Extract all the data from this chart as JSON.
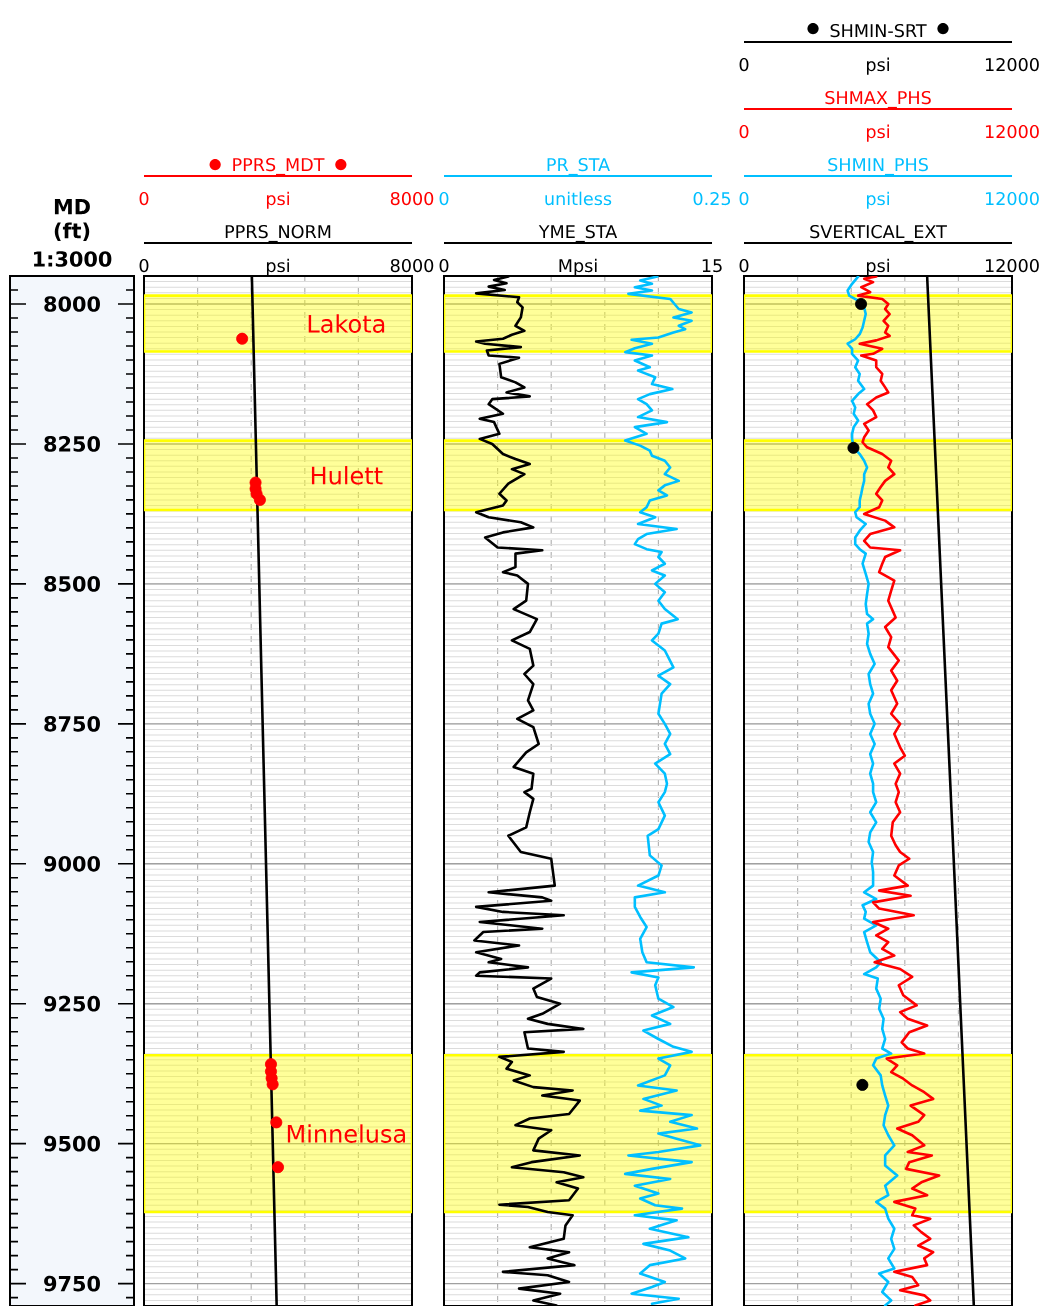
{
  "chart_data": [
    {
      "type": "line",
      "ylabel": "MD (ft)",
      "annotations": [
        "1:3000"
      ],
      "xlabel": "psi",
      "xlim": [
        0,
        8000
      ],
      "xticks": [
        0,
        {
          "value": 1600,
          "label": null
        },
        {
          "value": 3200,
          "label": null
        },
        {
          "value": 4800,
          "label": null
        },
        {
          "value": 6400,
          "label": null
        },
        8000
      ],
      "x2label": "psi",
      "x2lim": [
        0,
        8000
      ],
      "x2ticks": [
        0,
        8000
      ],
      "ylim": [
        9790,
        7950
      ],
      "yticks": [
        {
          "value": 7975,
          "label": null
        },
        8000,
        {
          "value": 8025,
          "label": null
        },
        {
          "value": 8050,
          "label": null
        },
        {
          "value": 8075,
          "label": null
        },
        {
          "value": 8100,
          "label": null
        },
        {
          "value": 8125,
          "label": null
        },
        {
          "value": 8150,
          "label": null
        },
        {
          "value": 8175,
          "label": null
        },
        {
          "value": 8200,
          "label": null
        },
        {
          "value": 8225,
          "label": null
        },
        8250,
        {
          "value": 8275,
          "label": null
        },
        {
          "value": 8300,
          "label": null
        },
        {
          "value": 8325,
          "label": null
        },
        {
          "value": 8350,
          "label": null
        },
        {
          "value": 8375,
          "label": null
        },
        {
          "value": 8400,
          "label": null
        },
        {
          "value": 8425,
          "label": null
        },
        {
          "value": 8450,
          "label": null
        },
        {
          "value": 8475,
          "label": null
        },
        8500,
        {
          "value": 8525,
          "label": null
        },
        {
          "value": 8550,
          "label": null
        },
        {
          "value": 8575,
          "label": null
        },
        {
          "value": 8600,
          "label": null
        },
        {
          "value": 8625,
          "label": null
        },
        {
          "value": 8650,
          "label": null
        },
        {
          "value": 8675,
          "label": null
        },
        {
          "value": 8700,
          "label": null
        },
        {
          "value": 8725,
          "label": null
        },
        8750,
        {
          "value": 8775,
          "label": null
        },
        {
          "value": 8800,
          "label": null
        },
        {
          "value": 8825,
          "label": null
        },
        {
          "value": 8850,
          "label": null
        },
        {
          "value": 8875,
          "label": null
        },
        {
          "value": 8900,
          "label": null
        },
        {
          "value": 8925,
          "label": null
        },
        {
          "value": 8950,
          "label": null
        },
        {
          "value": 8975,
          "label": null
        },
        9000,
        {
          "value": 9025,
          "label": null
        },
        {
          "value": 9050,
          "label": null
        },
        {
          "value": 9075,
          "label": null
        },
        {
          "value": 9100,
          "label": null
        },
        {
          "value": 9125,
          "label": null
        },
        {
          "value": 9150,
          "label": null
        },
        {
          "value": 9175,
          "label": null
        },
        {
          "value": 9200,
          "label": null
        },
        {
          "value": 9225,
          "label": null
        },
        9250,
        {
          "value": 9275,
          "label": null
        },
        {
          "value": 9300,
          "label": null
        },
        {
          "value": 9325,
          "label": null
        },
        {
          "value": 9350,
          "label": null
        },
        {
          "value": 9375,
          "label": null
        },
        {
          "value": 9400,
          "label": null
        },
        {
          "value": 9425,
          "label": null
        },
        {
          "value": 9450,
          "label": null
        },
        {
          "value": 9475,
          "label": null
        },
        9500,
        {
          "value": 9525,
          "label": null
        },
        {
          "value": 9550,
          "label": null
        },
        {
          "value": 9575,
          "label": null
        },
        {
          "value": 9600,
          "label": null
        },
        {
          "value": 9625,
          "label": null
        },
        {
          "value": 9650,
          "label": null
        },
        {
          "value": 9675,
          "label": null
        },
        {
          "value": 9700,
          "label": null
        },
        {
          "value": 9725,
          "label": null
        },
        9750,
        {
          "value": 9775,
          "label": null
        }
      ],
      "grid": true,
      "legend": "top",
      "bands": [
        {
          "axis": "y",
          "from": 7985,
          "to": 8085,
          "label": "Lakota",
          "color": "#ffff00"
        },
        {
          "axis": "y",
          "from": 8244,
          "to": 8368,
          "label": "Hulett",
          "color": "#ffff00"
        },
        {
          "axis": "y",
          "from": 9342,
          "to": 9622,
          "label": "Minnelusa",
          "color": "#ffff00"
        }
      ],
      "series": [
        {
          "name": "PPRS_NORM",
          "color": "#000000",
          "x": [
            3220,
            3960
          ],
          "values": [
            7951,
            9789
          ]
        },
        {
          "name": "PPRS_MDT",
          "type": "scatter",
          "marker": "circle",
          "axis": "x2",
          "color": "#ff0000",
          "x": [
            2930,
            3330,
            3330,
            3360,
            3460,
            3790,
            3790,
            3810,
            3840,
            3950,
            4000
          ],
          "values": [
            8062,
            8319,
            8330,
            8339,
            8350,
            9358,
            9371,
            9383,
            9394,
            9462,
            9542
          ]
        }
      ]
    },
    {
      "type": "line",
      "tick_labels": "x",
      "xlabel": "Mpsi",
      "xlim": [
        0,
        15
      ],
      "xticks": [
        0,
        {
          "value": 3,
          "label": null
        },
        {
          "value": 6,
          "label": null
        },
        {
          "value": 9,
          "label": null
        },
        {
          "value": 12,
          "label": null
        },
        15
      ],
      "x2label": "unitless",
      "x2lim": [
        0,
        0.25
      ],
      "x2ticks": [
        0,
        0.25
      ],
      "ylim": [
        9790,
        7950
      ],
      "yticks": [
        8000,
        8250,
        8500,
        8750,
        9000,
        9250,
        9500,
        9750
      ],
      "grid": true,
      "legend": "top",
      "bands": [
        {
          "axis": "y",
          "from": 7985,
          "to": 8085,
          "color": "#ffff00"
        },
        {
          "axis": "y",
          "from": 8244,
          "to": 8368,
          "color": "#ffff00"
        },
        {
          "axis": "y",
          "from": 9342,
          "to": 9622,
          "color": "#ffff00"
        }
      ],
      "series": [
        {
          "name": "YME_STA",
          "color": "#000000",
          "x": [
            3.6,
            2.8,
            3.5,
            2.5,
            3.4,
            1.8,
            4.2,
            4.1,
            4.4,
            4.3,
            4.0,
            4.5,
            3.8,
            3.3,
            1.8,
            2.3,
            4.3,
            2.4,
            2.5,
            4.2,
            3.1,
            3.2,
            4.0,
            4.5,
            3.5,
            4.8,
            2.7,
            2.5,
            3.3,
            2.0,
            2.8,
            3.1,
            2.0,
            2.7,
            3.3,
            4.0,
            4.8,
            3.8,
            4.5,
            3.6,
            3.1,
            3.5,
            3.3,
            1.8,
            2.5,
            4.3,
            5.0,
            3.3,
            2.3,
            3.0,
            5.5,
            4.0,
            4.0,
            3.3,
            4.1,
            4.7,
            4.6,
            3.9,
            5.2,
            4.8,
            3.8,
            4.8,
            5.0,
            4.5,
            5.0,
            4.7,
            5.0,
            4.1,
            5.0,
            5.3,
            4.6,
            3.9,
            5.0,
            4.9,
            4.5,
            5.0,
            4.8,
            4.6,
            3.6,
            4.3,
            6.0,
            6.2,
            2.5,
            5.5,
            6.0,
            1.8,
            3.3,
            6.7,
            2.0,
            5.5,
            2.2,
            1.7,
            4.2,
            1.8,
            3.2,
            2.5,
            4.7,
            2.0,
            1.8,
            6.0,
            5.0,
            5.2,
            6.5,
            5.5,
            4.7,
            5.8,
            7.8,
            4.5,
            4.7,
            6.7,
            3.1,
            3.8,
            3.5,
            4.8,
            3.9,
            5.0,
            7.2,
            5.5,
            7.6,
            7.0,
            4.8,
            4.0,
            6.0,
            5.3,
            5.0,
            7.6,
            4.9,
            3.8,
            6.7,
            7.8,
            6.3,
            7.5,
            7.0,
            3.1,
            4.7,
            5.8,
            7.2,
            6.8,
            6.7,
            4.8,
            7.0,
            5.8,
            7.3,
            3.3,
            5.8,
            7.0,
            4.2,
            6.5,
            5.0,
            6.3
          ],
          "values": [
            7951,
            7957,
            7963,
            7969,
            7975,
            7981,
            7988,
            7997,
            8006,
            8024,
            8039,
            8048,
            8055,
            8062,
            8067,
            8071,
            8077,
            8083,
            8092,
            8096,
            8107,
            8131,
            8140,
            8149,
            8158,
            8165,
            8170,
            8179,
            8196,
            8205,
            8211,
            8232,
            8241,
            8250,
            8268,
            8277,
            8286,
            8295,
            8304,
            8321,
            8339,
            8351,
            8360,
            8372,
            8381,
            8390,
            8399,
            8408,
            8417,
            8435,
            8440,
            8446,
            8470,
            8479,
            8485,
            8500,
            8530,
            8545,
            8563,
            8586,
            8601,
            8616,
            8646,
            8661,
            8679,
            8708,
            8726,
            8741,
            8756,
            8786,
            8801,
            8827,
            8839,
            8866,
            8872,
            8884,
            8908,
            8935,
            8950,
            8979,
            8991,
            9039,
            9051,
            9060,
            9066,
            9077,
            9086,
            9092,
            9104,
            9116,
            9122,
            9137,
            9146,
            9158,
            9170,
            9176,
            9185,
            9194,
            9200,
            9205,
            9223,
            9238,
            9250,
            9268,
            9277,
            9286,
            9295,
            9301,
            9330,
            9336,
            9345,
            9354,
            9366,
            9378,
            9387,
            9399,
            9405,
            9414,
            9423,
            9447,
            9455,
            9467,
            9476,
            9491,
            9512,
            9521,
            9533,
            9542,
            9551,
            9560,
            9569,
            9580,
            9601,
            9609,
            9613,
            9622,
            9628,
            9646,
            9670,
            9685,
            9694,
            9705,
            9717,
            9729,
            9735,
            9747,
            9759,
            9768,
            9780,
            9789
          ]
        },
        {
          "name": "PR_STA",
          "axis": "x2",
          "color": "#00bfff",
          "x": [
            0.199,
            0.183,
            0.194,
            0.178,
            0.194,
            0.172,
            0.211,
            0.215,
            0.219,
            0.231,
            0.214,
            0.231,
            0.219,
            0.225,
            0.214,
            0.2,
            0.175,
            0.194,
            0.178,
            0.169,
            0.194,
            0.178,
            0.192,
            0.181,
            0.197,
            0.194,
            0.213,
            0.192,
            0.181,
            0.189,
            0.194,
            0.181,
            0.208,
            0.178,
            0.189,
            0.169,
            0.183,
            0.192,
            0.194,
            0.206,
            0.211,
            0.206,
            0.219,
            0.206,
            0.2,
            0.208,
            0.192,
            0.189,
            0.183,
            0.197,
            0.181,
            0.217,
            0.189,
            0.181,
            0.178,
            0.189,
            0.203,
            0.2,
            0.206,
            0.194,
            0.206,
            0.197,
            0.206,
            0.2,
            0.206,
            0.218,
            0.203,
            0.2,
            0.194,
            0.206,
            0.214,
            0.2,
            0.211,
            0.203,
            0.2,
            0.206,
            0.211,
            0.206,
            0.211,
            0.197,
            0.206,
            0.208,
            0.206,
            0.2,
            0.206,
            0.2,
            0.19,
            0.192,
            0.203,
            0.2,
            0.181,
            0.206,
            0.178,
            0.178,
            0.183,
            0.189,
            0.183,
            0.185,
            0.189,
            0.233,
            0.175,
            0.2,
            0.197,
            0.2,
            0.214,
            0.194,
            0.211,
            0.186,
            0.2,
            0.214,
            0.231,
            0.2,
            0.211,
            0.206,
            0.181,
            0.217,
            0.186,
            0.203,
            0.183,
            0.231,
            0.211,
            0.236,
            0.2,
            0.217,
            0.239,
            0.2,
            0.172,
            0.231,
            0.194,
            0.169,
            0.211,
            0.178,
            0.2,
            0.183,
            0.197,
            0.222,
            0.178,
            0.217,
            0.192,
            0.228,
            0.186,
            0.211,
            0.225,
            0.192,
            0.183,
            0.206,
            0.194,
            0.175,
            0.219,
            0.194
          ],
          "values": [
            7951,
            7958,
            7964,
            7970,
            7976,
            7982,
            7991,
            8000,
            8009,
            8015,
            8024,
            8030,
            8039,
            8045,
            8051,
            8060,
            8064,
            8071,
            8079,
            8086,
            8092,
            8101,
            8113,
            8119,
            8131,
            8143,
            8152,
            8161,
            8170,
            8179,
            8190,
            8202,
            8211,
            8220,
            8232,
            8244,
            8253,
            8262,
            8271,
            8280,
            8292,
            8304,
            8316,
            8324,
            8333,
            8342,
            8351,
            8363,
            8372,
            8381,
            8393,
            8402,
            8411,
            8420,
            8429,
            8438,
            8443,
            8452,
            8464,
            8476,
            8485,
            8500,
            8515,
            8530,
            8545,
            8563,
            8571,
            8589,
            8601,
            8619,
            8649,
            8664,
            8679,
            8696,
            8732,
            8750,
            8768,
            8786,
            8804,
            8821,
            8839,
            8857,
            8872,
            8890,
            8914,
            8938,
            8950,
            8985,
            9003,
            9021,
            9039,
            9051,
            9060,
            9077,
            9095,
            9113,
            9134,
            9158,
            9176,
            9185,
            9194,
            9203,
            9217,
            9241,
            9256,
            9271,
            9286,
            9298,
            9313,
            9327,
            9336,
            9348,
            9360,
            9378,
            9396,
            9405,
            9420,
            9432,
            9441,
            9449,
            9461,
            9473,
            9482,
            9491,
            9503,
            9515,
            9521,
            9533,
            9545,
            9554,
            9563,
            9575,
            9589,
            9598,
            9610,
            9616,
            9628,
            9637,
            9652,
            9667,
            9679,
            9691,
            9705,
            9717,
            9732,
            9747,
            9756,
            9768,
            9777,
            9786
          ]
        }
      ]
    },
    {
      "type": "line",
      "tick_labels": "x",
      "xlabel": "psi",
      "xlim": [
        0,
        12000
      ],
      "xticks": [
        0,
        {
          "value": 2400,
          "label": null
        },
        {
          "value": 4800,
          "label": null
        },
        {
          "value": 7200,
          "label": null
        },
        {
          "value": 9600,
          "label": null
        },
        12000
      ],
      "x2label": "psi",
      "x2lim": [
        0,
        12000
      ],
      "x2ticks": [
        0,
        12000
      ],
      "annotations": [
        "0",
        "psi",
        "12000",
        "0",
        "psi",
        "12000"
      ],
      "ylim": [
        9790,
        7950
      ],
      "yticks": [
        8000,
        8250,
        8500,
        8750,
        9000,
        9250,
        9500,
        9750
      ],
      "grid": true,
      "legend": "top",
      "bands": [
        {
          "axis": "y",
          "from": 7985,
          "to": 8085,
          "color": "#ffff00"
        },
        {
          "axis": "y",
          "from": 8244,
          "to": 8368,
          "color": "#ffff00"
        },
        {
          "axis": "y",
          "from": 9342,
          "to": 9622,
          "color": "#ffff00"
        }
      ],
      "series": [
        {
          "name": "SVERTICAL_EXT",
          "color": "#000000",
          "x": [
            8200,
            9250,
            10290
          ],
          "values": [
            7951,
            8869,
            9789
          ]
        },
        {
          "name": "SHMIN_PHS",
          "axis": "x2",
          "color": "#00bfff",
          "x": [
            5110,
            4840,
            4640,
            4710,
            5110,
            5380,
            5450,
            5380,
            5310,
            5180,
            4980,
            4640,
            4840,
            4840,
            5110,
            4980,
            5180,
            5110,
            5380,
            5110,
            4840,
            4980,
            4910,
            5110,
            4910,
            4840,
            4840,
            4910,
            5180,
            5380,
            5510,
            5380,
            5380,
            5310,
            5250,
            5180,
            5180,
            4980,
            5040,
            5450,
            5180,
            4980,
            4980,
            5180,
            5450,
            5310,
            5450,
            5580,
            5510,
            5450,
            5510,
            5780,
            5510,
            5580,
            5510,
            5650,
            5850,
            5580,
            5650,
            5780,
            5580,
            5650,
            5850,
            5650,
            5850,
            5650,
            5780,
            5650,
            5780,
            5780,
            5920,
            5650,
            5920,
            5650,
            5580,
            5780,
            5720,
            5780,
            5780,
            5380,
            5920,
            5310,
            5450,
            5380,
            5920,
            5380,
            5510,
            5650,
            6120,
            5920,
            5380,
            5990,
            5920,
            6120,
            6050,
            6250,
            6190,
            6320,
            6190,
            6590,
            5920,
            5780,
            6120,
            6190,
            6320,
            6460,
            6320,
            6250,
            6460,
            6730,
            6320,
            6320,
            6860,
            6320,
            6460,
            5920,
            6320,
            6460,
            6730,
            6590,
            6730,
            6460,
            6730,
            6050,
            6460,
            6190,
            6590,
            6320
          ],
          "values": [
            7951,
            7964,
            7976,
            7985,
            7994,
            8006,
            8018,
            8030,
            8042,
            8054,
            8063,
            8071,
            8080,
            8089,
            8101,
            8113,
            8125,
            8137,
            8152,
            8161,
            8173,
            8185,
            8196,
            8208,
            8220,
            8232,
            8241,
            8256,
            8268,
            8280,
            8292,
            8304,
            8316,
            8327,
            8339,
            8351,
            8363,
            8372,
            8381,
            8393,
            8405,
            8417,
            8429,
            8438,
            8446,
            8464,
            8482,
            8500,
            8518,
            8536,
            8554,
            8563,
            8571,
            8589,
            8607,
            8625,
            8643,
            8661,
            8679,
            8696,
            8714,
            8732,
            8750,
            8768,
            8786,
            8804,
            8821,
            8839,
            8857,
            8872,
            8890,
            8908,
            8926,
            8944,
            8961,
            8979,
            8997,
            9015,
            9039,
            9051,
            9063,
            9074,
            9086,
            9098,
            9110,
            9122,
            9140,
            9158,
            9176,
            9185,
            9197,
            9205,
            9223,
            9241,
            9259,
            9277,
            9295,
            9313,
            9330,
            9339,
            9348,
            9360,
            9378,
            9396,
            9414,
            9432,
            9449,
            9467,
            9485,
            9503,
            9521,
            9539,
            9557,
            9575,
            9592,
            9604,
            9616,
            9634,
            9652,
            9670,
            9688,
            9705,
            9723,
            9732,
            9747,
            9765,
            9780,
            9789
          ]
        },
        {
          "name": "SHMAX_PHS",
          "axis": "x2",
          "color": "#ff0000",
          "x": [
            5920,
            5380,
            5780,
            5250,
            5650,
            5110,
            6190,
            6460,
            6320,
            6520,
            6250,
            6460,
            6320,
            6520,
            5920,
            5180,
            6190,
            5780,
            5250,
            5920,
            5920,
            6190,
            6120,
            6320,
            6460,
            5920,
            5510,
            5780,
            5920,
            5380,
            5580,
            5380,
            5310,
            5510,
            6190,
            6590,
            6460,
            6730,
            6320,
            6120,
            5920,
            6190,
            6050,
            5380,
            6320,
            6730,
            5650,
            5380,
            5650,
            6990,
            6320,
            6190,
            6050,
            6730,
            6590,
            6460,
            6790,
            6320,
            6590,
            6460,
            6930,
            6590,
            6860,
            6590,
            6860,
            6590,
            6990,
            6730,
            6990,
            7200,
            6730,
            6990,
            6790,
            6930,
            6790,
            6990,
            6660,
            6590,
            6790,
            6990,
            7400,
            6930,
            6730,
            7330,
            6050,
            7460,
            5780,
            6050,
            7600,
            5780,
            6460,
            5920,
            6460,
            6190,
            6730,
            5850,
            6990,
            7530,
            6930,
            7130,
            7730,
            6990,
            7330,
            8200,
            7400,
            7060,
            7330,
            8070,
            6390,
            6860,
            6590,
            7130,
            7530,
            8070,
            8470,
            7460,
            8070,
            7800,
            6860,
            7530,
            8070,
            7330,
            8410,
            7400,
            7260,
            8740,
            7940,
            7530,
            8200,
            6730,
            7670,
            7530,
            8340,
            7600,
            7940,
            8340,
            7800,
            8470,
            8070,
            8200,
            6730,
            7530,
            7800,
            6990,
            8070,
            8340,
            7670
          ],
          "values": [
            7951,
            7955,
            7961,
            7970,
            7979,
            7985,
            7991,
            8000,
            8009,
            8018,
            8030,
            8039,
            8051,
            8057,
            8065,
            8071,
            8080,
            8089,
            8092,
            8101,
            8113,
            8125,
            8137,
            8149,
            8158,
            8167,
            8179,
            8190,
            8202,
            8214,
            8226,
            8238,
            8247,
            8256,
            8268,
            8280,
            8292,
            8304,
            8316,
            8327,
            8339,
            8351,
            8363,
            8375,
            8387,
            8399,
            8411,
            8423,
            8435,
            8440,
            8452,
            8464,
            8479,
            8494,
            8512,
            8530,
            8560,
            8577,
            8595,
            8613,
            8637,
            8655,
            8673,
            8690,
            8714,
            8732,
            8750,
            8768,
            8792,
            8807,
            8821,
            8839,
            8857,
            8872,
            8890,
            8908,
            8926,
            8950,
            8967,
            8979,
            8991,
            9003,
            9021,
            9039,
            9048,
            9057,
            9069,
            9080,
            9092,
            9104,
            9116,
            9128,
            9140,
            9152,
            9164,
            9176,
            9188,
            9202,
            9217,
            9235,
            9253,
            9265,
            9277,
            9289,
            9301,
            9319,
            9330,
            9339,
            9348,
            9360,
            9372,
            9384,
            9396,
            9408,
            9420,
            9432,
            9449,
            9461,
            9473,
            9485,
            9503,
            9515,
            9521,
            9533,
            9545,
            9557,
            9569,
            9580,
            9592,
            9604,
            9616,
            9628,
            9634,
            9646,
            9658,
            9670,
            9682,
            9694,
            9705,
            9717,
            9729,
            9738,
            9753,
            9762,
            9771,
            9780,
            9789
          ]
        },
        {
          "name": "SHMIN-SRT",
          "type": "scatter",
          "marker": "circle",
          "axis": "x2",
          "color": "#000000",
          "x": [
            5240,
            4900,
            5300
          ],
          "values": [
            8000,
            8257,
            9395
          ]
        }
      ]
    }
  ]
}
